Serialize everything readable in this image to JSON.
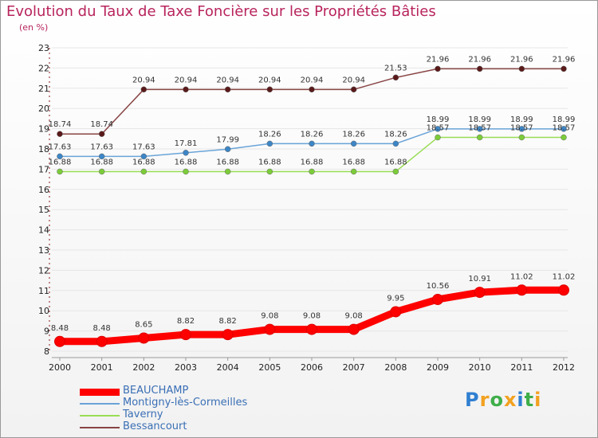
{
  "chart_data": {
    "type": "line",
    "title": "Evolution du Taux de Taxe Foncière sur les Propriétés Bâties",
    "ylabel": "(en %)",
    "xlabel": "",
    "ylim": [
      8,
      23
    ],
    "yticks": [
      "8",
      "9",
      "10",
      "11",
      "12",
      "13",
      "14",
      "15",
      "16",
      "17",
      "18",
      "19",
      "20",
      "21",
      "22",
      "23"
    ],
    "categories": [
      "2000",
      "2001",
      "2002",
      "2003",
      "2004",
      "2005",
      "2006",
      "2007",
      "2008",
      "2009",
      "2010",
      "2011",
      "2012"
    ],
    "series": [
      {
        "name": "BEAUCHAMP",
        "color": "#ff0000",
        "values": [
          8.48,
          8.48,
          8.65,
          8.82,
          8.82,
          9.08,
          9.08,
          9.08,
          9.95,
          10.56,
          10.91,
          11.02,
          11.02
        ],
        "labels": [
          "8.48",
          "8.48",
          "8.65",
          "8.82",
          "8.82",
          "9.08",
          "9.08",
          "9.08",
          "9.95",
          "10.56",
          "10.91",
          "11.02",
          "11.02"
        ]
      },
      {
        "name": "Montigny-lès-Cormeilles",
        "color": "#6aa4d8",
        "values": [
          17.63,
          17.63,
          17.63,
          17.81,
          17.99,
          18.26,
          18.26,
          18.26,
          18.26,
          18.99,
          18.99,
          18.99,
          18.99
        ],
        "labels": [
          "17.63",
          "17.63",
          "17.63",
          "17.81",
          "17.99",
          "18.26",
          "18.26",
          "18.26",
          "18.26",
          "18.99",
          "18.99",
          "18.99",
          "18.99"
        ]
      },
      {
        "name": "Taverny",
        "color": "#99dd55",
        "values": [
          16.88,
          16.88,
          16.88,
          16.88,
          16.88,
          16.88,
          16.88,
          16.88,
          16.88,
          18.57,
          18.57,
          18.57,
          18.57
        ],
        "labels": [
          "16.88",
          "16.88",
          "16.88",
          "16.88",
          "16.88",
          "16.88",
          "16.88",
          "16.88",
          "16.88",
          "18.57",
          "18.57",
          "18.57",
          "18.57"
        ]
      },
      {
        "name": "Bessancourt",
        "color": "#884444",
        "values": [
          18.74,
          18.74,
          20.94,
          20.94,
          20.94,
          20.94,
          20.94,
          20.94,
          21.53,
          21.96,
          21.96,
          21.96,
          21.96
        ],
        "labels": [
          "18.74",
          "18.74",
          "20.94",
          "20.94",
          "20.94",
          "20.94",
          "20.94",
          "20.94",
          "21.53",
          "21.96",
          "21.96",
          "21.96",
          "21.96"
        ]
      }
    ]
  },
  "logo": {
    "letters": [
      "P",
      "r",
      "o",
      "x",
      "i",
      "t",
      "i"
    ],
    "colors": [
      "#2f7fd1",
      "#f2a11f",
      "#3fae49",
      "#f2a11f",
      "#2f7fd1",
      "#3fae49",
      "#f2a11f"
    ]
  }
}
